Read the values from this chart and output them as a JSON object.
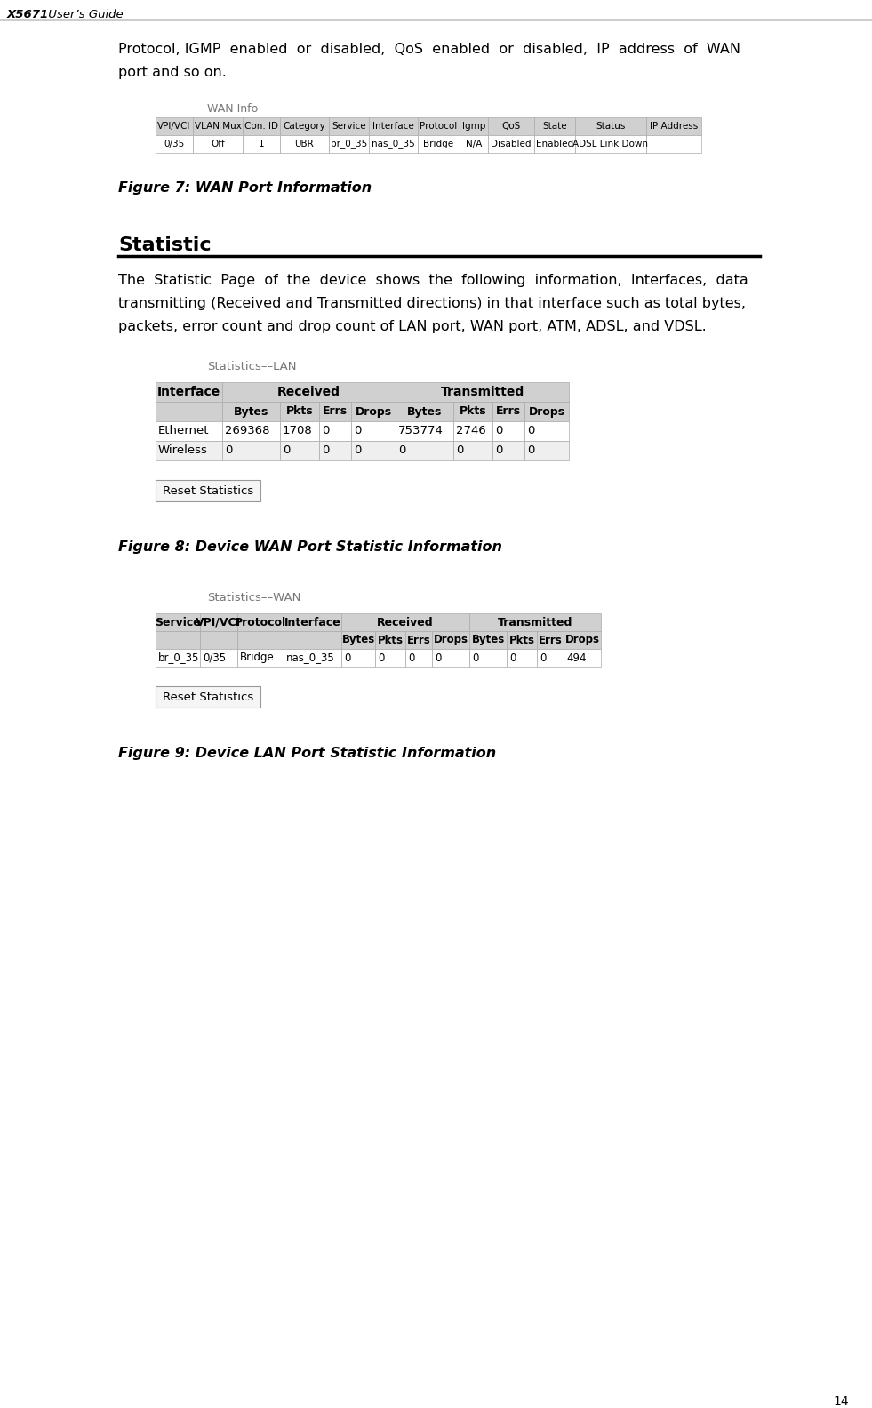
{
  "page_number": "14",
  "header_bold": "X5671",
  "header_normal": " User’s Guide",
  "body_text_1_line1": "Protocol, IGMP  enabled  or  disabled,  QoS  enabled  or  disabled,  IP  address  of  WAN",
  "body_text_1_line2": "port and so on.",
  "wan_info_label": "WAN Info",
  "wan_table_headers": [
    "VPI/VCI",
    "VLAN Mux",
    "Con. ID",
    "Category",
    "Service",
    "Interface",
    "Protocol",
    "Igmp",
    "QoS",
    "State",
    "Status",
    "IP Address"
  ],
  "wan_table_row": [
    "0/35",
    "Off",
    "1",
    "UBR",
    "br_0_35",
    "nas_0_35",
    "Bridge",
    "N/A",
    "Disabled",
    "Enabled",
    "ADSL Link Down",
    ""
  ],
  "figure7_caption": "Figure 7: WAN Port Information",
  "statistic_heading": "Statistic",
  "body_text_2_line1": "The  Statistic  Page  of  the  device  shows  the  following  information,  Interfaces,  data",
  "body_text_2_line2": "transmitting (Received and Transmitted directions) in that interface such as total bytes,",
  "body_text_2_line3": "packets, error count and drop count of LAN port, WAN port, ATM, ADSL, and VDSL.",
  "lan_stats_label": "Statistics––LAN",
  "lan_col_widths": [
    75,
    65,
    44,
    36,
    50,
    65,
    44,
    36,
    50
  ],
  "lan_table_data": [
    [
      "Ethernet",
      "269368",
      "1708",
      "0",
      "0",
      "753774",
      "2746",
      "0",
      "0"
    ],
    [
      "Wireless",
      "0",
      "0",
      "0",
      "0",
      "0",
      "0",
      "0",
      "0"
    ]
  ],
  "reset_button_text": "Reset Statistics",
  "figure8_caption": "Figure 8: Device WAN Port Statistic Information",
  "wan_stats_label": "Statistics––WAN",
  "wan_col_widths": [
    50,
    42,
    52,
    65,
    38,
    34,
    30,
    42,
    42,
    34,
    30,
    42
  ],
  "wan_stats_data": [
    [
      "br_0_35",
      "0/35",
      "Bridge",
      "nas_0_35",
      "0",
      "0",
      "0",
      "0",
      "0",
      "0",
      "0",
      "494"
    ]
  ],
  "figure9_caption": "Figure 9: Device LAN Port Statistic Information",
  "bg_color": "#ffffff",
  "table_header_bg": "#d0d0d0",
  "table_row_bg": "#ffffff",
  "table_row_alt_bg": "#efefef",
  "table_border_color": "#aaaaaa",
  "text_color": "#000000",
  "label_color": "#777777",
  "btn_color": "#f5f5f5",
  "btn_border": "#999999"
}
